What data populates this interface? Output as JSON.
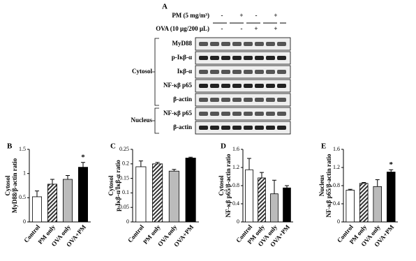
{
  "blot": {
    "panel": "A",
    "conditions": [
      {
        "label": "PM (5 mg/m³)",
        "signs": [
          "-",
          "+",
          "-",
          "+"
        ]
      },
      {
        "label": "OVA (10 μg/200 μL)",
        "signs": [
          "-",
          "-",
          "+",
          "+"
        ]
      }
    ],
    "groups": [
      {
        "label": "Cytosol",
        "rows": [
          "MyD88",
          "p-Iκβ-α",
          "Iκβ-α",
          "NF-κβ p65",
          "β-actin"
        ]
      },
      {
        "label": "Nucleus",
        "rows": [
          "NF-κβ p65",
          "β-actin"
        ]
      }
    ]
  },
  "chart_data": [
    {
      "type": "bar",
      "panel": "B",
      "ylabel": [
        "Cytosol",
        "MyD88/β-actin ratio"
      ],
      "categories": [
        "Control",
        "PM only",
        "OVA only",
        "OVA+PM"
      ],
      "values": [
        0.52,
        0.78,
        0.88,
        1.13
      ],
      "errors": [
        0.12,
        0.1,
        0.08,
        0.1
      ],
      "colors": [
        "#ffffff",
        "#777777",
        "#bbbbbb",
        "#000000"
      ],
      "ylim": [
        0,
        1.5
      ],
      "yticks": [
        0,
        0.5,
        1,
        1.5
      ],
      "annotations": [
        {
          "index": 3,
          "text": "*"
        }
      ]
    },
    {
      "type": "bar",
      "panel": "C",
      "ylabel": [
        "Cytosol",
        "p-Iκβ-α/Iκβ-α ratio"
      ],
      "categories": [
        "Control",
        "PM only",
        "OVA only",
        "OVA+PM"
      ],
      "values": [
        0.19,
        0.2,
        0.175,
        0.22
      ],
      "errors": [
        0.02,
        0.005,
        0.006,
        0.003
      ],
      "colors": [
        "#ffffff",
        "#777777",
        "#bbbbbb",
        "#000000"
      ],
      "ylim": [
        0,
        0.25
      ],
      "yticks": [
        0,
        0.05,
        0.1,
        0.15,
        0.2,
        0.25
      ],
      "annotations": []
    },
    {
      "type": "bar",
      "panel": "D",
      "ylabel": [
        "Cytosol",
        "NF-κβ p65/β-actin ratio"
      ],
      "categories": [
        "Control",
        "PM only",
        "OVA only",
        "OVA+PM"
      ],
      "values": [
        1.15,
        0.97,
        0.62,
        0.75
      ],
      "errors": [
        0.25,
        0.12,
        0.3,
        0.05
      ],
      "colors": [
        "#ffffff",
        "#777777",
        "#bbbbbb",
        "#000000"
      ],
      "ylim": [
        0,
        1.6
      ],
      "yticks": [
        0,
        0.4,
        0.8,
        1.2,
        1.6
      ],
      "annotations": []
    },
    {
      "type": "bar",
      "panel": "E",
      "ylabel": [
        "Nucleus",
        "NF-κβ p65/β-actin ratio"
      ],
      "categories": [
        "Control",
        "PM only",
        "OVA only",
        "OVA+PM"
      ],
      "values": [
        0.7,
        0.85,
        0.78,
        1.1
      ],
      "errors": [
        0.02,
        0.02,
        0.15,
        0.05
      ],
      "colors": [
        "#ffffff",
        "#777777",
        "#bbbbbb",
        "#000000"
      ],
      "ylim": [
        0,
        1.6
      ],
      "yticks": [
        0,
        0.4,
        0.8,
        1.2,
        1.6
      ],
      "annotations": [
        {
          "index": 3,
          "text": "*"
        }
      ]
    }
  ]
}
